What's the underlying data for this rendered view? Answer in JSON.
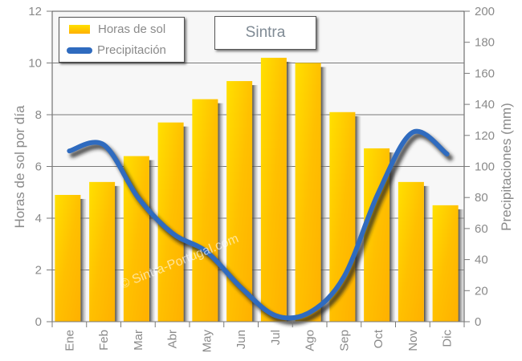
{
  "chart_data": {
    "type": "bar",
    "title": "Sintra",
    "xlabel": "",
    "ylabel": "Horas de sol por día",
    "y2label": "Precipitaciones (mm)",
    "ylim": [
      0,
      12
    ],
    "y2lim": [
      0,
      200
    ],
    "yticks": [
      0,
      2,
      4,
      6,
      8,
      10,
      12
    ],
    "y2ticks": [
      0,
      20,
      40,
      60,
      80,
      100,
      120,
      140,
      160,
      180,
      200
    ],
    "grid": true,
    "legend_position": "top-left",
    "categories": [
      "Ene",
      "Feb",
      "Mar",
      "Abr",
      "May",
      "Jun",
      "Jul",
      "Ago",
      "Sep",
      "Oct",
      "Nov",
      "Dic"
    ],
    "series": [
      {
        "name": "Horas de sol",
        "type": "bar",
        "axis": "left",
        "color": "#ffc400",
        "values": [
          4.9,
          5.4,
          6.4,
          7.7,
          8.6,
          9.3,
          10.2,
          10.0,
          8.1,
          6.7,
          5.4,
          4.5
        ]
      },
      {
        "name": "Precipitación",
        "type": "line",
        "axis": "right",
        "color": "#2f6bbf",
        "values": [
          110,
          114,
          80,
          57,
          45,
          22,
          4,
          6,
          29,
          83,
          122,
          108
        ]
      }
    ],
    "watermark": "© Sintra-Portugal.com"
  },
  "legend": {
    "bar_label": "Horas de sol",
    "line_label": "Precipitación"
  }
}
